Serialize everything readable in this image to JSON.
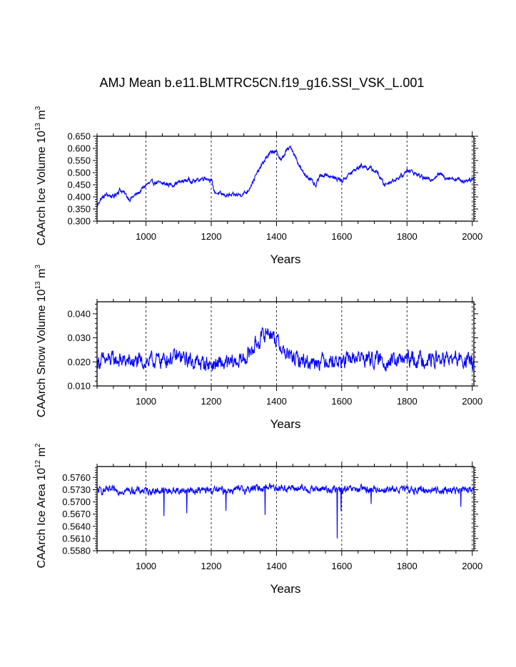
{
  "title": "AMJ Mean b.e11.BLMTRC5CN.f19_g16.SSI_VSK_L.001",
  "series_color": "#0000ff",
  "chart_data": [
    {
      "type": "line",
      "name": "ice_volume",
      "xlabel": "Years",
      "ylabel_text": "CAArch Ice Volume 10",
      "ylabel_exp": "13",
      "ylabel_unit": "m",
      "ylabel_unit_exp": "3",
      "xlim": [
        850,
        2005
      ],
      "ylim": [
        0.3,
        0.65
      ],
      "x_ticks": [
        1000,
        1200,
        1400,
        1600,
        1800,
        2000
      ],
      "x_tick_labels": [
        "1000",
        "1200",
        "1400",
        "1600",
        "1800",
        "2000"
      ],
      "y_ticks": [
        0.3,
        0.35,
        0.4,
        0.45,
        0.5,
        0.55,
        0.6,
        0.65
      ],
      "y_tick_labels": [
        "0.300",
        "0.350",
        "0.400",
        "0.450",
        "0.500",
        "0.550",
        "0.600",
        "0.650"
      ],
      "vertical_dashed_grid": [
        1000,
        1200,
        1400,
        1600,
        1800,
        2000
      ],
      "anchors": {
        "x": [
          850,
          860,
          880,
          900,
          920,
          930,
          950,
          980,
          1000,
          1020,
          1050,
          1080,
          1100,
          1130,
          1150,
          1180,
          1200,
          1210,
          1230,
          1260,
          1290,
          1310,
          1330,
          1350,
          1370,
          1390,
          1405,
          1415,
          1430,
          1445,
          1460,
          1480,
          1500,
          1520,
          1530,
          1550,
          1570,
          1590,
          1600,
          1620,
          1640,
          1660,
          1690,
          1710,
          1730,
          1760,
          1790,
          1800,
          1820,
          1850,
          1870,
          1900,
          1920,
          1950,
          1970,
          2000,
          2005
        ],
        "y": [
          0.36,
          0.39,
          0.41,
          0.4,
          0.43,
          0.42,
          0.39,
          0.42,
          0.45,
          0.46,
          0.455,
          0.45,
          0.46,
          0.47,
          0.465,
          0.48,
          0.47,
          0.42,
          0.41,
          0.405,
          0.41,
          0.42,
          0.47,
          0.52,
          0.565,
          0.59,
          0.575,
          0.55,
          0.59,
          0.605,
          0.56,
          0.5,
          0.48,
          0.44,
          0.48,
          0.495,
          0.48,
          0.475,
          0.465,
          0.49,
          0.51,
          0.53,
          0.515,
          0.5,
          0.45,
          0.47,
          0.49,
          0.515,
          0.5,
          0.48,
          0.47,
          0.495,
          0.48,
          0.475,
          0.465,
          0.475,
          0.475
        ],
        "noise": 0.009
      }
    },
    {
      "type": "line",
      "name": "snow_volume",
      "xlabel": "Years",
      "ylabel_text": "CAArch Snow Volume 10",
      "ylabel_exp": "13",
      "ylabel_unit": "m",
      "ylabel_unit_exp": "3",
      "xlim": [
        850,
        2005
      ],
      "ylim": [
        0.01,
        0.045
      ],
      "x_ticks": [
        1000,
        1200,
        1400,
        1600,
        1800,
        2000
      ],
      "x_tick_labels": [
        "1000",
        "1200",
        "1400",
        "1600",
        "1800",
        "2000"
      ],
      "y_ticks": [
        0.01,
        0.02,
        0.03,
        0.04
      ],
      "y_tick_labels": [
        "0.010",
        "0.020",
        "0.030",
        "0.040"
      ],
      "vertical_dashed_grid": [
        1000,
        1200,
        1400,
        1600,
        1800,
        2000
      ],
      "anchors": {
        "x": [
          850,
          900,
          950,
          1000,
          1050,
          1100,
          1150,
          1200,
          1250,
          1300,
          1330,
          1360,
          1375,
          1390,
          1410,
          1430,
          1460,
          1500,
          1550,
          1600,
          1650,
          1700,
          1750,
          1800,
          1850,
          1900,
          1950,
          2005
        ],
        "y": [
          0.02,
          0.021,
          0.02,
          0.02,
          0.021,
          0.022,
          0.02,
          0.019,
          0.019,
          0.021,
          0.026,
          0.031,
          0.033,
          0.031,
          0.027,
          0.023,
          0.021,
          0.02,
          0.021,
          0.02,
          0.022,
          0.021,
          0.02,
          0.021,
          0.021,
          0.021,
          0.021,
          0.02
        ],
        "noise": 0.0032
      }
    },
    {
      "type": "line",
      "name": "ice_area",
      "xlabel": "Years",
      "ylabel_text": "CAArch Ice Area 10",
      "ylabel_exp": "12",
      "ylabel_unit": "m",
      "ylabel_unit_exp": "2",
      "xlim": [
        850,
        2005
      ],
      "ylim": [
        0.558,
        0.5787
      ],
      "x_ticks": [
        1000,
        1200,
        1400,
        1600,
        1800,
        2000
      ],
      "x_tick_labels": [
        "1000",
        "1200",
        "1400",
        "1600",
        "1800",
        "2000"
      ],
      "y_ticks": [
        0.558,
        0.561,
        0.564,
        0.567,
        0.57,
        0.573,
        0.576
      ],
      "y_tick_labels": [
        "0.5580",
        "0.5610",
        "0.5640",
        "0.5670",
        "0.5700",
        "0.5730",
        "0.5760"
      ],
      "vertical_dashed_grid": [
        1000,
        1200,
        1400,
        1600,
        1800,
        2000
      ],
      "anchors": {
        "x": [
          850,
          950,
          1050,
          1150,
          1250,
          1300,
          1350,
          1380,
          1400,
          1450,
          1500,
          1550,
          1580,
          1600,
          1650,
          1700,
          1800,
          1900,
          2005
        ],
        "y": [
          0.5728,
          0.5728,
          0.5727,
          0.5728,
          0.5729,
          0.573,
          0.5735,
          0.5738,
          0.5736,
          0.5733,
          0.5731,
          0.5732,
          0.573,
          0.5729,
          0.5731,
          0.5731,
          0.573,
          0.5729,
          0.5728
        ],
        "noise": 0.0009,
        "dips": [
          [
            1055,
            0.5665
          ],
          [
            1125,
            0.5672
          ],
          [
            1245,
            0.5678
          ],
          [
            1365,
            0.5668
          ],
          [
            1586,
            0.561
          ],
          [
            1598,
            0.5678
          ],
          [
            1690,
            0.5695
          ],
          [
            1965,
            0.5688
          ]
        ]
      }
    }
  ]
}
